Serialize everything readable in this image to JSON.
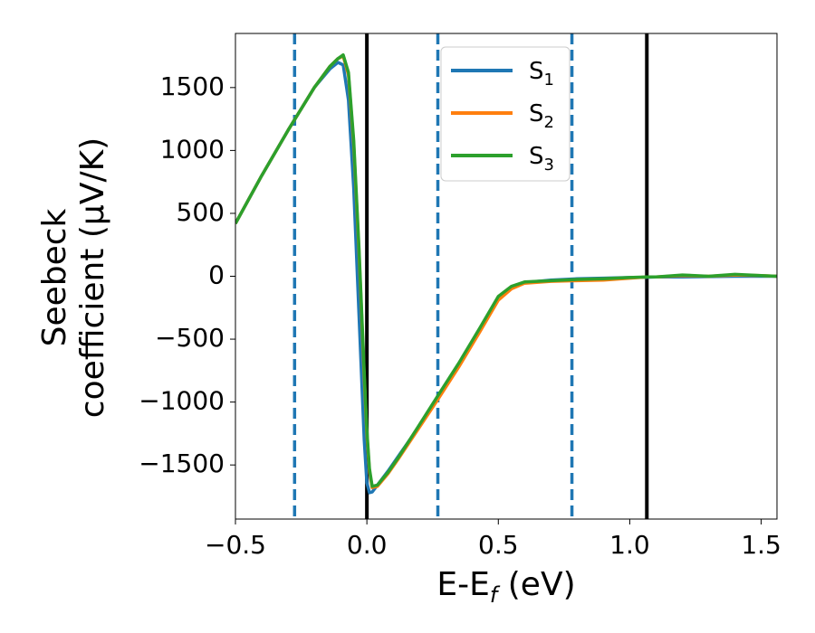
{
  "chart_data": {
    "type": "line",
    "title": "",
    "xlabel": {
      "main": "E-E",
      "sub": "f",
      "unit": " (eV)"
    },
    "ylabel": {
      "line1": "Seebeck",
      "line2": "coefficient  (μV/K)"
    },
    "xlim": [
      -0.5,
      1.56
    ],
    "ylim": [
      -1930,
      1930
    ],
    "xticks": [
      -0.5,
      0.0,
      0.5,
      1.0,
      1.5
    ],
    "xtick_labels": [
      "−0.5",
      "0.0",
      "0.5",
      "1.0",
      "1.5"
    ],
    "yticks": [
      1500,
      1000,
      500,
      0,
      -500,
      -1000,
      -1500
    ],
    "ytick_labels": [
      "1500",
      "1000",
      "500",
      "0",
      "−500",
      "−1000",
      "−1500"
    ],
    "grid": false,
    "legend": {
      "placement": "upper-center"
    },
    "vlines_solid": [
      0.0,
      1.065
    ],
    "vlines_dashed": [
      -0.275,
      0.27,
      0.78
    ],
    "series": [
      {
        "name": "S",
        "sub": "1",
        "color": "#1f77b4",
        "x": [
          -0.5,
          -0.4,
          -0.3,
          -0.2,
          -0.14,
          -0.11,
          -0.09,
          -0.07,
          -0.05,
          -0.03,
          -0.01,
          0.0,
          0.01,
          0.02,
          0.04,
          0.08,
          0.12,
          0.2,
          0.27,
          0.35,
          0.43,
          0.5,
          0.55,
          0.6,
          0.7,
          0.8,
          0.9,
          1.0,
          1.065,
          1.1,
          1.2,
          1.3,
          1.4,
          1.5,
          1.56
        ],
        "y": [
          420,
          800,
          1160,
          1500,
          1650,
          1700,
          1680,
          1400,
          700,
          -300,
          -1300,
          -1640,
          -1720,
          -1715,
          -1660,
          -1550,
          -1430,
          -1190,
          -960,
          -700,
          -420,
          -170,
          -90,
          -50,
          -30,
          -20,
          -15,
          -10,
          -8,
          -5,
          -5,
          -3,
          0,
          0,
          0
        ]
      },
      {
        "name": "S",
        "sub": "2",
        "color": "#ff7f0e",
        "x": [
          -0.5,
          -0.4,
          -0.3,
          -0.2,
          -0.14,
          -0.11,
          -0.09,
          -0.07,
          -0.05,
          -0.03,
          -0.01,
          0.0,
          0.01,
          0.02,
          0.04,
          0.08,
          0.12,
          0.2,
          0.27,
          0.35,
          0.43,
          0.5,
          0.55,
          0.6,
          0.7,
          0.8,
          0.9,
          1.0,
          1.065,
          1.1,
          1.2,
          1.3,
          1.4,
          1.5,
          1.56
        ],
        "y": [
          420,
          800,
          1160,
          1500,
          1670,
          1730,
          1750,
          1600,
          1050,
          200,
          -800,
          -1250,
          -1550,
          -1680,
          -1670,
          -1570,
          -1450,
          -1200,
          -980,
          -720,
          -440,
          -190,
          -100,
          -55,
          -40,
          -35,
          -30,
          -15,
          -5,
          -5,
          5,
          0,
          10,
          5,
          0
        ]
      },
      {
        "name": "S",
        "sub": "3",
        "color": "#2ca02c",
        "x": [
          -0.5,
          -0.4,
          -0.3,
          -0.2,
          -0.14,
          -0.11,
          -0.09,
          -0.07,
          -0.05,
          -0.03,
          -0.01,
          0.0,
          0.01,
          0.02,
          0.04,
          0.08,
          0.12,
          0.2,
          0.27,
          0.35,
          0.43,
          0.5,
          0.55,
          0.6,
          0.7,
          0.8,
          0.9,
          1.0,
          1.065,
          1.1,
          1.2,
          1.3,
          1.4,
          1.5,
          1.56
        ],
        "y": [
          420,
          800,
          1160,
          1500,
          1670,
          1730,
          1760,
          1620,
          1080,
          230,
          -760,
          -1220,
          -1530,
          -1670,
          -1660,
          -1560,
          -1440,
          -1180,
          -950,
          -690,
          -410,
          -160,
          -80,
          -45,
          -35,
          -25,
          -20,
          -10,
          -5,
          -5,
          10,
          0,
          15,
          5,
          0
        ]
      }
    ]
  }
}
